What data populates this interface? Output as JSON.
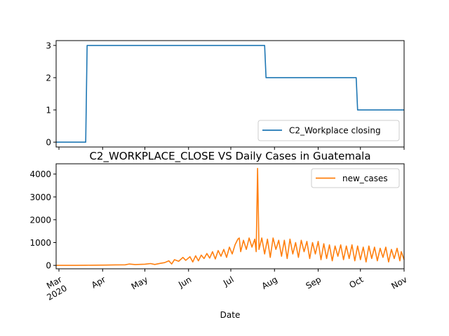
{
  "chart_data": [
    {
      "type": "line",
      "legend": "lower-right",
      "grid": false,
      "ylim": [
        -0.15,
        3.15
      ],
      "yticks": [
        "0",
        "1",
        "2",
        "3"
      ],
      "series": [
        {
          "name": "C2_Workplace closing",
          "color": "#1f77b4",
          "steps": [
            {
              "from": "2020-02-28",
              "to": "2020-03-20",
              "value": 0
            },
            {
              "from": "2020-03-21",
              "to": "2020-07-25",
              "value": 3
            },
            {
              "from": "2020-07-26",
              "to": "2020-09-28",
              "value": 2
            },
            {
              "from": "2020-09-29",
              "to": "2020-11-01",
              "value": 1
            }
          ]
        }
      ]
    },
    {
      "type": "line",
      "title": "C2_WORKPLACE_CLOSE VS Daily Cases in Guatemala",
      "xlabel": "Date",
      "legend": "top-right",
      "grid": false,
      "ylim": [
        -150,
        4450
      ],
      "yticks": [
        "0",
        "1000",
        "2000",
        "3000",
        "4000"
      ],
      "xticks": [
        "Mar\n2020",
        "Apr",
        "May",
        "Jun",
        "Jul",
        "Aug",
        "Sep",
        "Oct",
        "Nov"
      ],
      "series": [
        {
          "name": "new_cases",
          "color": "#ff7f0e",
          "points": [
            [
              "2020-02-28",
              0
            ],
            [
              "2020-03-13",
              1
            ],
            [
              "2020-03-20",
              5
            ],
            [
              "2020-03-27",
              10
            ],
            [
              "2020-04-03",
              12
            ],
            [
              "2020-04-10",
              20
            ],
            [
              "2020-04-17",
              25
            ],
            [
              "2020-04-20",
              60
            ],
            [
              "2020-04-24",
              35
            ],
            [
              "2020-05-01",
              50
            ],
            [
              "2020-05-05",
              80
            ],
            [
              "2020-05-08",
              40
            ],
            [
              "2020-05-12",
              90
            ],
            [
              "2020-05-15",
              120
            ],
            [
              "2020-05-18",
              200
            ],
            [
              "2020-05-20",
              60
            ],
            [
              "2020-05-22",
              250
            ],
            [
              "2020-05-25",
              180
            ],
            [
              "2020-05-28",
              350
            ],
            [
              "2020-05-30",
              220
            ],
            [
              "2020-06-02",
              380
            ],
            [
              "2020-06-04",
              150
            ],
            [
              "2020-06-06",
              420
            ],
            [
              "2020-06-08",
              200
            ],
            [
              "2020-06-10",
              450
            ],
            [
              "2020-06-12",
              300
            ],
            [
              "2020-06-14",
              520
            ],
            [
              "2020-06-16",
              320
            ],
            [
              "2020-06-18",
              600
            ],
            [
              "2020-06-20",
              280
            ],
            [
              "2020-06-22",
              650
            ],
            [
              "2020-06-24",
              400
            ],
            [
              "2020-06-26",
              700
            ],
            [
              "2020-06-28",
              350
            ],
            [
              "2020-06-30",
              800
            ],
            [
              "2020-07-02",
              500
            ],
            [
              "2020-07-04",
              900
            ],
            [
              "2020-07-06",
              1150
            ],
            [
              "2020-07-07",
              1200
            ],
            [
              "2020-07-08",
              600
            ],
            [
              "2020-07-10",
              1100
            ],
            [
              "2020-07-12",
              700
            ],
            [
              "2020-07-14",
              1200
            ],
            [
              "2020-07-16",
              800
            ],
            [
              "2020-07-18",
              1150
            ],
            [
              "2020-07-19",
              600
            ],
            [
              "2020-07-20",
              4250
            ],
            [
              "2020-07-21",
              700
            ],
            [
              "2020-07-23",
              1200
            ],
            [
              "2020-07-25",
              500
            ],
            [
              "2020-07-27",
              1150
            ],
            [
              "2020-07-29",
              350
            ],
            [
              "2020-07-31",
              1200
            ],
            [
              "2020-08-02",
              700
            ],
            [
              "2020-08-04",
              1100
            ],
            [
              "2020-08-06",
              400
            ],
            [
              "2020-08-08",
              1100
            ],
            [
              "2020-08-10",
              300
            ],
            [
              "2020-08-12",
              1150
            ],
            [
              "2020-08-14",
              500
            ],
            [
              "2020-08-16",
              1000
            ],
            [
              "2020-08-18",
              350
            ],
            [
              "2020-08-20",
              1100
            ],
            [
              "2020-08-22",
              600
            ],
            [
              "2020-08-24",
              1050
            ],
            [
              "2020-08-26",
              300
            ],
            [
              "2020-08-28",
              1000
            ],
            [
              "2020-08-30",
              500
            ],
            [
              "2020-09-01",
              1050
            ],
            [
              "2020-09-03",
              250
            ],
            [
              "2020-09-05",
              950
            ],
            [
              "2020-09-07",
              300
            ],
            [
              "2020-09-09",
              900
            ],
            [
              "2020-09-11",
              200
            ],
            [
              "2020-09-13",
              850
            ],
            [
              "2020-09-15",
              400
            ],
            [
              "2020-09-17",
              900
            ],
            [
              "2020-09-19",
              250
            ],
            [
              "2020-09-21",
              850
            ],
            [
              "2020-09-23",
              300
            ],
            [
              "2020-09-25",
              900
            ],
            [
              "2020-09-27",
              200
            ],
            [
              "2020-09-29",
              850
            ],
            [
              "2020-10-01",
              250
            ],
            [
              "2020-10-03",
              800
            ],
            [
              "2020-10-05",
              150
            ],
            [
              "2020-10-07",
              850
            ],
            [
              "2020-10-09",
              300
            ],
            [
              "2020-10-11",
              800
            ],
            [
              "2020-10-13",
              200
            ],
            [
              "2020-10-15",
              750
            ],
            [
              "2020-10-17",
              350
            ],
            [
              "2020-10-19",
              800
            ],
            [
              "2020-10-21",
              150
            ],
            [
              "2020-10-23",
              700
            ],
            [
              "2020-10-25",
              300
            ],
            [
              "2020-10-27",
              750
            ],
            [
              "2020-10-29",
              200
            ],
            [
              "2020-10-30",
              600
            ],
            [
              "2020-11-01",
              250
            ]
          ]
        }
      ]
    }
  ]
}
